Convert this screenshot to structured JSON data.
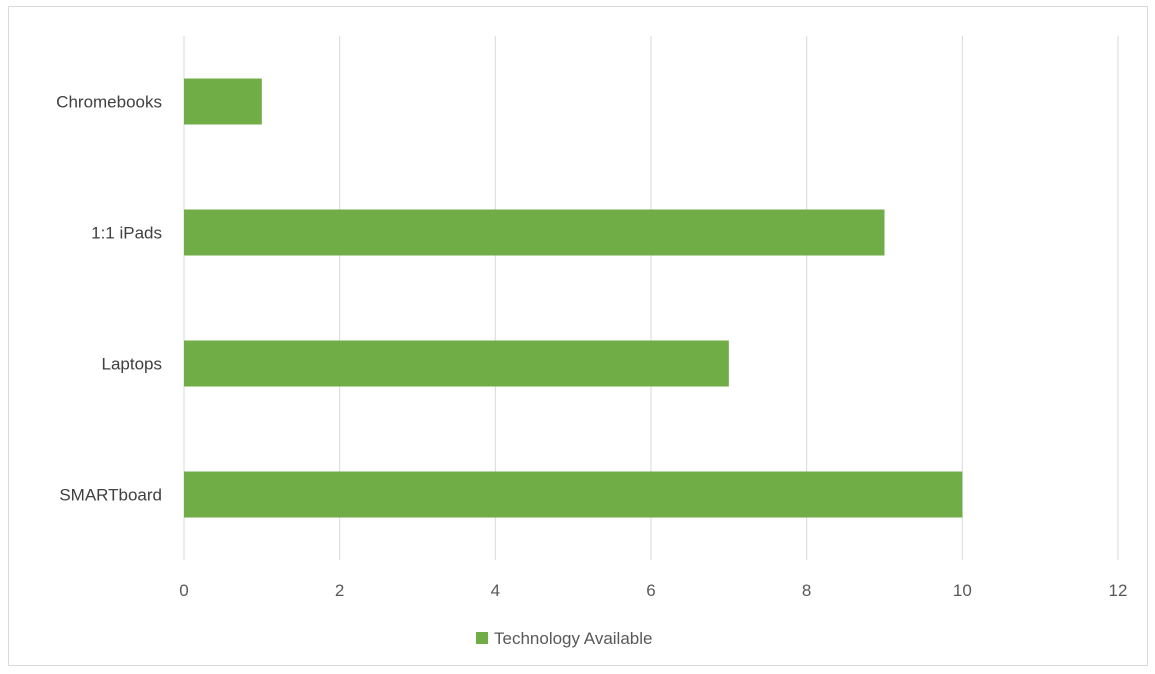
{
  "chart_data": {
    "type": "bar",
    "orientation": "horizontal",
    "categories": [
      "Chromebooks",
      "1:1 iPads",
      "Laptops",
      "SMARTboard"
    ],
    "series": [
      {
        "name": "Technology Available",
        "values": [
          1,
          9,
          7,
          10
        ],
        "color": "#70ad47"
      }
    ],
    "xlim": [
      0,
      12
    ],
    "x_ticks": [
      "0",
      "2",
      "4",
      "6",
      "8",
      "10",
      "12"
    ],
    "grid": "vertical",
    "legend_position": "bottom"
  }
}
